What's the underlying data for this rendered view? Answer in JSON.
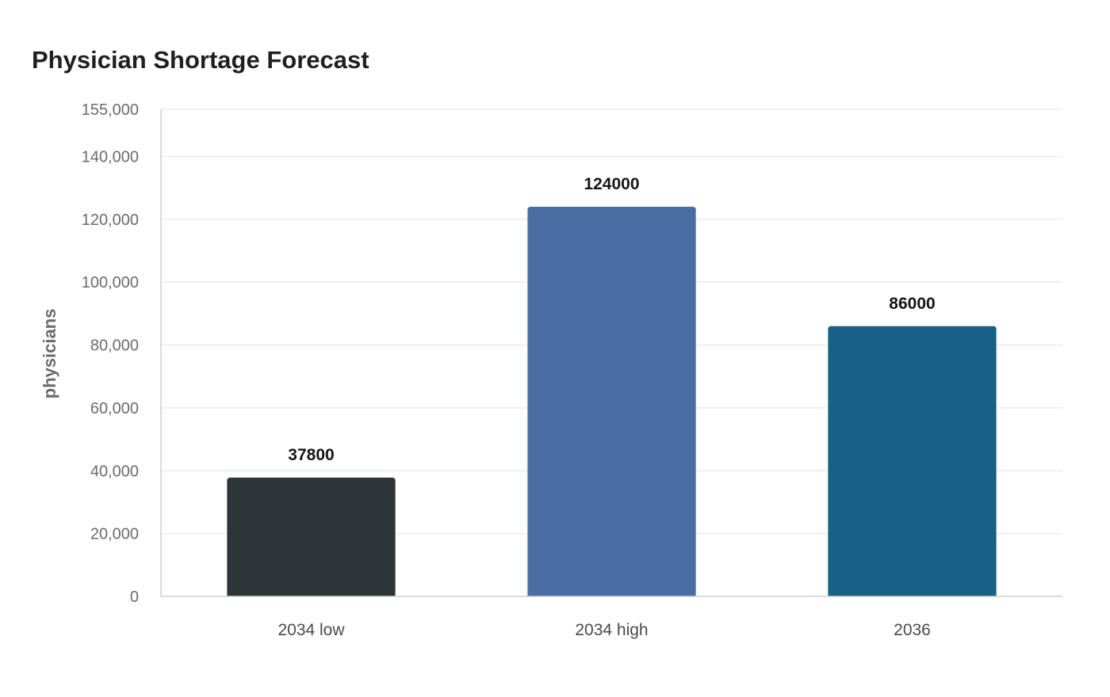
{
  "chart_data": {
    "type": "bar",
    "title": "Physician Shortage Forecast",
    "xlabel": "",
    "ylabel": "physicians",
    "categories": [
      "2034 low",
      "2034 high",
      "2036"
    ],
    "values": [
      37800,
      124000,
      86000
    ],
    "value_labels": [
      "37800",
      "124000",
      "86000"
    ],
    "colors": [
      "#2e3538",
      "#4a6ea3",
      "#176086"
    ],
    "ylim": [
      0,
      155000
    ],
    "yticks": [
      0,
      20000,
      40000,
      60000,
      80000,
      100000,
      120000,
      140000,
      155000
    ],
    "ytick_labels": [
      "0",
      "20,000",
      "40,000",
      "60,000",
      "80,000",
      "100,000",
      "120,000",
      "140,000",
      "155,000"
    ],
    "grid": true,
    "legend": "none"
  }
}
